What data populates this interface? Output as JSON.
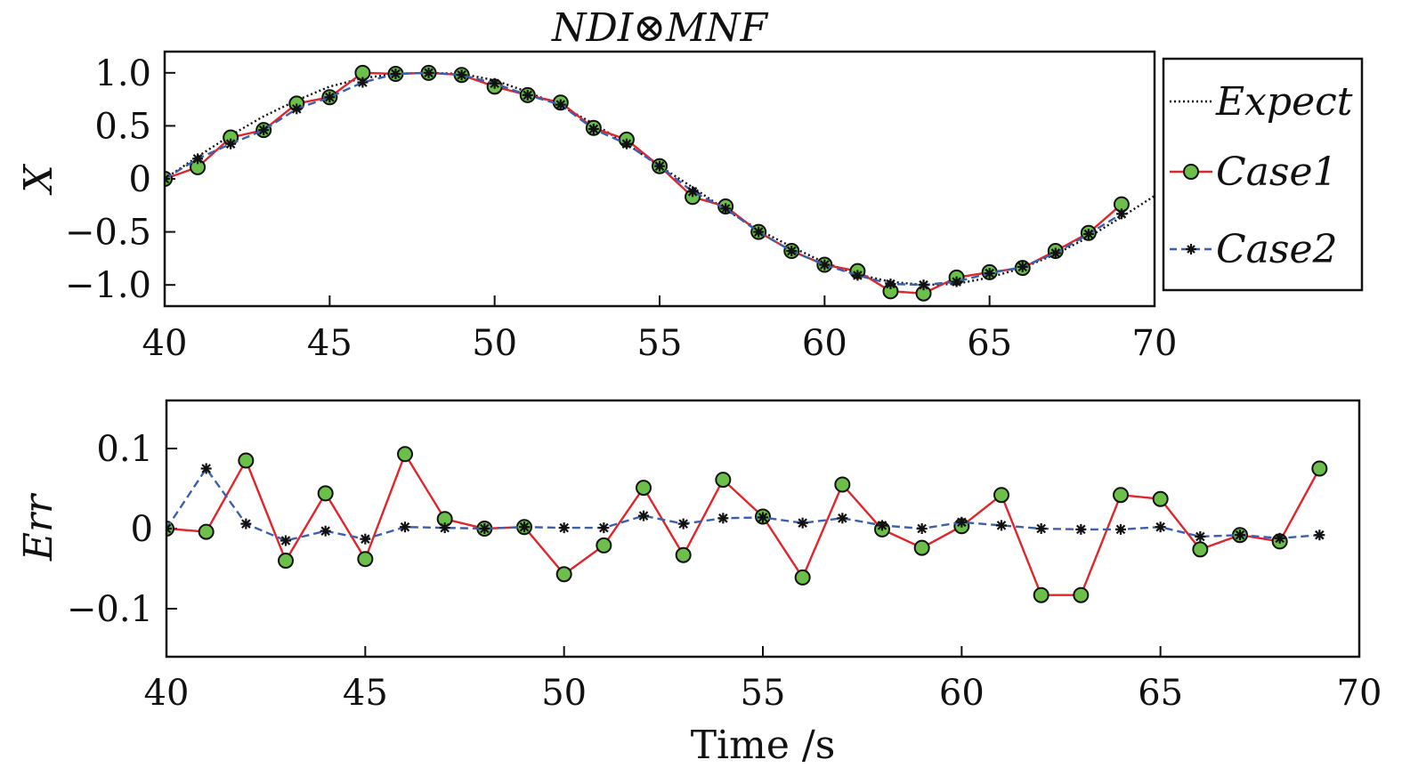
{
  "chart_data": [
    {
      "type": "line",
      "title": "NDI⊗MNF",
      "xlabel": "",
      "ylabel": "X",
      "xlim": [
        40,
        70
      ],
      "ylim": [
        -1.2,
        1.2
      ],
      "x_ticks": [
        "40",
        "45",
        "50",
        "55",
        "60",
        "65",
        "70"
      ],
      "y_ticks": [
        "1.0",
        "0.5",
        "0",
        "−0.5",
        "−1.0"
      ],
      "legend_position": "outside-right",
      "grid": false,
      "series": [
        {
          "name": "Expect",
          "style": "dotted",
          "color": "#111111",
          "x": [
            40,
            41,
            42,
            43,
            44,
            45,
            46,
            47,
            48,
            49,
            50,
            51,
            52,
            53,
            54,
            55,
            56,
            57,
            58,
            59,
            60,
            61,
            62,
            63,
            64,
            65,
            66,
            67,
            68,
            69,
            70
          ],
          "y": [
            0.0,
            0.21,
            0.41,
            0.59,
            0.74,
            0.87,
            0.95,
            0.99,
            1.0,
            0.99,
            0.93,
            0.82,
            0.69,
            0.52,
            0.33,
            0.12,
            -0.08,
            -0.29,
            -0.48,
            -0.64,
            -0.79,
            -0.9,
            -0.97,
            -1.0,
            -0.99,
            -0.93,
            -0.84,
            -0.71,
            -0.55,
            -0.36,
            -0.16
          ]
        },
        {
          "name": "Case1",
          "style": "solid",
          "color": "#e0262b",
          "marker": "circle",
          "marker_color": "#6cc04a",
          "x": [
            40,
            41,
            42,
            43,
            44,
            45,
            46,
            47,
            48,
            49,
            50,
            51,
            52,
            53,
            54,
            55,
            56,
            57,
            58,
            59,
            60,
            61,
            62,
            63,
            64,
            65,
            66,
            67,
            68,
            69
          ],
          "y": [
            0.0,
            0.11,
            0.39,
            0.46,
            0.71,
            0.77,
            1.0,
            0.99,
            1.0,
            0.98,
            0.87,
            0.79,
            0.72,
            0.48,
            0.37,
            0.12,
            -0.17,
            -0.26,
            -0.5,
            -0.68,
            -0.81,
            -0.87,
            -1.06,
            -1.08,
            -0.93,
            -0.88,
            -0.84,
            -0.68,
            -0.51,
            -0.24
          ]
        },
        {
          "name": "Case2",
          "style": "dashed",
          "color": "#3b5fb0",
          "marker": "asterisk",
          "marker_color": "#111111",
          "x": [
            40,
            41,
            42,
            43,
            44,
            45,
            46,
            47,
            48,
            49,
            50,
            51,
            52,
            53,
            54,
            55,
            56,
            57,
            58,
            59,
            60,
            61,
            62,
            63,
            64,
            65,
            66,
            67,
            68,
            69
          ],
          "y": [
            0.0,
            0.19,
            0.33,
            0.46,
            0.66,
            0.77,
            0.91,
            0.99,
            1.0,
            0.98,
            0.9,
            0.79,
            0.7,
            0.47,
            0.33,
            0.12,
            -0.12,
            -0.28,
            -0.5,
            -0.68,
            -0.81,
            -0.91,
            -0.99,
            -1.0,
            -0.97,
            -0.89,
            -0.83,
            -0.7,
            -0.52,
            -0.33
          ]
        }
      ]
    },
    {
      "type": "line",
      "title": "",
      "xlabel": "Time /s",
      "ylabel": "Err",
      "xlim": [
        40,
        70
      ],
      "ylim": [
        -0.16,
        0.16
      ],
      "x_ticks": [
        "40",
        "45",
        "50",
        "55",
        "60",
        "65",
        "70"
      ],
      "y_ticks": [
        "0.1",
        "0",
        "−0.1"
      ],
      "grid": false,
      "series": [
        {
          "name": "Case1",
          "style": "solid",
          "color": "#e0262b",
          "marker": "circle",
          "marker_color": "#6cc04a",
          "x": [
            40,
            41,
            42,
            43,
            44,
            45,
            46,
            47,
            48,
            49,
            50,
            51,
            52,
            53,
            54,
            55,
            56,
            57,
            58,
            59,
            60,
            61,
            62,
            63,
            64,
            65,
            66,
            67,
            68,
            69
          ],
          "y": [
            0.0,
            -0.004,
            0.085,
            -0.04,
            0.044,
            -0.038,
            0.093,
            0.012,
            0.0,
            0.002,
            -0.057,
            -0.021,
            0.051,
            -0.033,
            0.061,
            0.015,
            -0.061,
            0.055,
            -0.001,
            -0.024,
            0.003,
            0.042,
            -0.083,
            -0.083,
            0.042,
            0.037,
            -0.026,
            -0.008,
            -0.016,
            0.075
          ]
        },
        {
          "name": "Case2",
          "style": "dashed",
          "color": "#3b5fb0",
          "marker": "asterisk",
          "marker_color": "#111111",
          "x": [
            40,
            41,
            42,
            43,
            44,
            45,
            46,
            47,
            48,
            49,
            50,
            51,
            52,
            53,
            54,
            55,
            56,
            57,
            58,
            59,
            60,
            61,
            62,
            63,
            64,
            65,
            66,
            67,
            68,
            69
          ],
          "y": [
            0.0,
            0.075,
            0.006,
            -0.015,
            -0.003,
            -0.013,
            0.002,
            0.001,
            0.0,
            0.002,
            0.001,
            0.001,
            0.016,
            0.006,
            0.013,
            0.014,
            0.007,
            0.013,
            0.004,
            -0.0,
            0.008,
            0.004,
            -0.0,
            -0.001,
            -0.001,
            0.002,
            -0.01,
            -0.008,
            -0.012,
            -0.008
          ]
        }
      ]
    }
  ]
}
